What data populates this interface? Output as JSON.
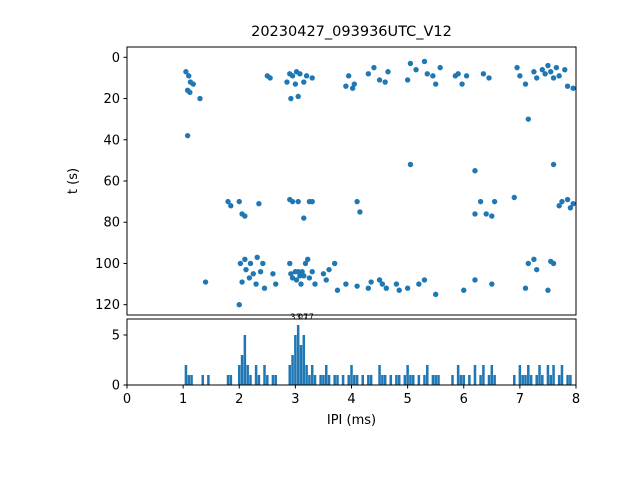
{
  "chart_data": {
    "type": "scatter",
    "title": "20230427_093936UTC_V12",
    "xlabel": "IPI (ms)",
    "xlim": [
      0,
      8
    ],
    "xticks": [
      0,
      1,
      2,
      3,
      4,
      5,
      6,
      7,
      8
    ],
    "color": "#1f77b4",
    "scatter": {
      "ylabel": "t (s)",
      "ylim": [
        -5,
        125
      ],
      "inverted": true,
      "yticks": [
        0,
        20,
        40,
        60,
        80,
        100,
        120
      ],
      "points": [
        [
          1.05,
          7
        ],
        [
          1.1,
          9
        ],
        [
          1.13,
          12
        ],
        [
          1.18,
          13
        ],
        [
          1.08,
          16
        ],
        [
          1.12,
          17
        ],
        [
          1.3,
          20
        ],
        [
          1.08,
          38
        ],
        [
          2.5,
          9
        ],
        [
          2.55,
          10
        ],
        [
          2.85,
          12
        ],
        [
          2.9,
          8
        ],
        [
          2.95,
          9
        ],
        [
          3.0,
          13
        ],
        [
          3.02,
          7
        ],
        [
          3.08,
          8
        ],
        [
          3.15,
          12
        ],
        [
          3.2,
          9
        ],
        [
          3.05,
          19
        ],
        [
          2.92,
          20
        ],
        [
          3.3,
          10
        ],
        [
          3.9,
          14
        ],
        [
          3.95,
          9
        ],
        [
          4.02,
          15
        ],
        [
          4.05,
          13
        ],
        [
          4.3,
          8
        ],
        [
          4.4,
          5
        ],
        [
          4.5,
          11
        ],
        [
          4.6,
          12
        ],
        [
          4.65,
          7
        ],
        [
          5.0,
          11
        ],
        [
          5.05,
          3
        ],
        [
          5.15,
          6
        ],
        [
          5.3,
          2
        ],
        [
          5.35,
          8
        ],
        [
          5.45,
          9
        ],
        [
          5.5,
          13
        ],
        [
          5.58,
          5
        ],
        [
          5.85,
          9
        ],
        [
          5.9,
          8
        ],
        [
          5.97,
          13
        ],
        [
          6.05,
          9
        ],
        [
          6.35,
          8
        ],
        [
          6.45,
          10
        ],
        [
          6.95,
          5
        ],
        [
          7.0,
          9
        ],
        [
          7.1,
          13
        ],
        [
          7.15,
          30
        ],
        [
          7.25,
          7
        ],
        [
          7.3,
          10
        ],
        [
          7.4,
          6
        ],
        [
          7.45,
          8
        ],
        [
          7.5,
          4
        ],
        [
          7.55,
          7
        ],
        [
          7.6,
          10
        ],
        [
          7.65,
          5
        ],
        [
          7.7,
          9
        ],
        [
          7.8,
          6
        ],
        [
          7.85,
          14
        ],
        [
          7.95,
          15
        ],
        [
          5.05,
          52
        ],
        [
          6.2,
          55
        ],
        [
          7.6,
          52
        ],
        [
          1.8,
          70
        ],
        [
          1.85,
          72
        ],
        [
          2.0,
          70
        ],
        [
          2.05,
          76
        ],
        [
          2.1,
          77
        ],
        [
          2.35,
          71
        ],
        [
          2.9,
          69
        ],
        [
          2.95,
          70
        ],
        [
          3.05,
          70
        ],
        [
          3.15,
          78
        ],
        [
          3.25,
          70
        ],
        [
          3.3,
          70
        ],
        [
          4.1,
          70
        ],
        [
          4.15,
          75
        ],
        [
          6.2,
          76
        ],
        [
          6.3,
          70
        ],
        [
          6.4,
          76
        ],
        [
          6.5,
          77
        ],
        [
          6.55,
          70
        ],
        [
          6.9,
          68
        ],
        [
          7.7,
          72
        ],
        [
          7.75,
          70
        ],
        [
          7.85,
          69
        ],
        [
          7.9,
          73
        ],
        [
          7.95,
          71
        ],
        [
          1.4,
          109
        ],
        [
          2.0,
          120
        ],
        [
          2.02,
          100
        ],
        [
          2.05,
          109
        ],
        [
          2.1,
          98
        ],
        [
          2.12,
          103
        ],
        [
          2.18,
          107
        ],
        [
          2.2,
          100
        ],
        [
          2.25,
          105
        ],
        [
          2.3,
          110
        ],
        [
          2.32,
          97
        ],
        [
          2.38,
          104
        ],
        [
          2.42,
          100
        ],
        [
          2.45,
          112
        ],
        [
          2.6,
          105
        ],
        [
          2.65,
          110
        ],
        [
          2.9,
          100
        ],
        [
          2.92,
          105
        ],
        [
          2.95,
          107
        ],
        [
          3.0,
          104
        ],
        [
          3.02,
          108
        ],
        [
          3.05,
          104
        ],
        [
          3.08,
          106
        ],
        [
          3.1,
          110
        ],
        [
          3.12,
          104
        ],
        [
          3.15,
          106
        ],
        [
          3.18,
          100
        ],
        [
          3.22,
          98
        ],
        [
          3.25,
          107
        ],
        [
          3.3,
          104
        ],
        [
          3.35,
          110
        ],
        [
          3.5,
          105
        ],
        [
          3.55,
          108
        ],
        [
          3.6,
          103
        ],
        [
          3.7,
          100
        ],
        [
          3.75,
          113
        ],
        [
          3.9,
          110
        ],
        [
          4.1,
          111
        ],
        [
          4.3,
          112
        ],
        [
          4.35,
          109
        ],
        [
          4.5,
          108
        ],
        [
          4.55,
          110
        ],
        [
          4.62,
          112
        ],
        [
          4.8,
          110
        ],
        [
          4.85,
          113
        ],
        [
          5.0,
          112
        ],
        [
          5.2,
          110
        ],
        [
          5.3,
          108
        ],
        [
          5.5,
          115
        ],
        [
          6.0,
          113
        ],
        [
          6.2,
          108
        ],
        [
          6.5,
          110
        ],
        [
          7.1,
          112
        ],
        [
          7.15,
          100
        ],
        [
          7.25,
          98
        ],
        [
          7.3,
          103
        ],
        [
          7.5,
          113
        ],
        [
          7.55,
          99
        ],
        [
          7.6,
          100
        ]
      ]
    },
    "histogram": {
      "type": "bar",
      "ylim": [
        0,
        6.6
      ],
      "yticks": [
        0,
        5
      ],
      "bin_width": 0.045,
      "bars": [
        [
          1.05,
          2
        ],
        [
          1.1,
          1
        ],
        [
          1.15,
          1
        ],
        [
          1.35,
          1
        ],
        [
          1.45,
          1
        ],
        [
          1.8,
          1
        ],
        [
          1.85,
          1
        ],
        [
          2.0,
          2
        ],
        [
          2.05,
          3
        ],
        [
          2.1,
          5
        ],
        [
          2.15,
          2
        ],
        [
          2.2,
          1
        ],
        [
          2.3,
          2
        ],
        [
          2.35,
          1
        ],
        [
          2.45,
          2
        ],
        [
          2.5,
          1
        ],
        [
          2.6,
          1
        ],
        [
          2.65,
          1
        ],
        [
          2.9,
          2
        ],
        [
          2.95,
          3
        ],
        [
          3.0,
          5
        ],
        [
          3.05,
          6
        ],
        [
          3.1,
          4
        ],
        [
          3.15,
          5
        ],
        [
          3.2,
          2
        ],
        [
          3.25,
          1
        ],
        [
          3.3,
          2
        ],
        [
          3.35,
          1
        ],
        [
          3.45,
          1
        ],
        [
          3.5,
          1
        ],
        [
          3.55,
          2
        ],
        [
          3.6,
          1
        ],
        [
          3.7,
          1
        ],
        [
          3.75,
          1
        ],
        [
          3.85,
          1
        ],
        [
          3.95,
          1
        ],
        [
          4.0,
          2
        ],
        [
          4.05,
          1
        ],
        [
          4.1,
          1
        ],
        [
          4.2,
          1
        ],
        [
          4.3,
          1
        ],
        [
          4.35,
          1
        ],
        [
          4.5,
          2
        ],
        [
          4.55,
          1
        ],
        [
          4.6,
          1
        ],
        [
          4.7,
          1
        ],
        [
          4.8,
          1
        ],
        [
          4.85,
          1
        ],
        [
          4.95,
          1
        ],
        [
          5.0,
          2
        ],
        [
          5.05,
          1
        ],
        [
          5.1,
          1
        ],
        [
          5.2,
          1
        ],
        [
          5.3,
          1
        ],
        [
          5.35,
          2
        ],
        [
          5.45,
          1
        ],
        [
          5.5,
          1
        ],
        [
          5.55,
          1
        ],
        [
          5.8,
          1
        ],
        [
          5.9,
          2
        ],
        [
          5.95,
          1
        ],
        [
          6.0,
          1
        ],
        [
          6.1,
          1
        ],
        [
          6.2,
          2
        ],
        [
          6.3,
          1
        ],
        [
          6.35,
          2
        ],
        [
          6.45,
          1
        ],
        [
          6.5,
          2
        ],
        [
          6.55,
          1
        ],
        [
          6.9,
          1
        ],
        [
          7.0,
          2
        ],
        [
          7.05,
          1
        ],
        [
          7.1,
          1
        ],
        [
          7.15,
          2
        ],
        [
          7.2,
          1
        ],
        [
          7.3,
          1
        ],
        [
          7.35,
          2
        ],
        [
          7.4,
          1
        ],
        [
          7.5,
          2
        ],
        [
          7.55,
          1
        ],
        [
          7.6,
          2
        ],
        [
          7.7,
          1
        ],
        [
          7.75,
          2
        ],
        [
          7.85,
          1
        ],
        [
          7.9,
          1
        ]
      ]
    },
    "annotations": [
      {
        "text": "3.07",
        "x": 3.07,
        "y": 6.45
      },
      {
        "text": "3.17",
        "x": 3.17,
        "y": 6.45
      }
    ]
  }
}
